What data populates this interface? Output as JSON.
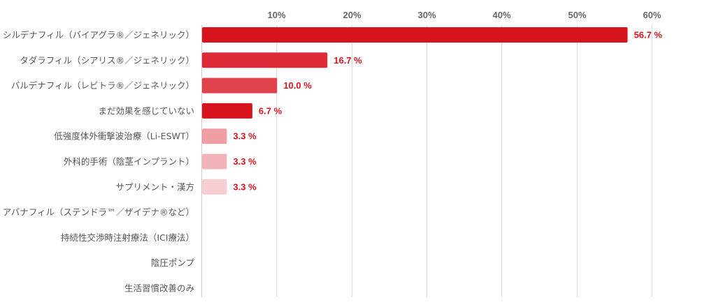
{
  "chart_data": {
    "type": "bar",
    "orientation": "horizontal",
    "title": "",
    "xlabel": "",
    "ylabel": "",
    "xlim": [
      0,
      60
    ],
    "x_ticks": [
      10,
      20,
      30,
      40,
      50,
      60
    ],
    "x_tick_labels": [
      "10%",
      "20%",
      "30%",
      "40%",
      "50%",
      "60%"
    ],
    "grid": true,
    "categories": [
      "シルデナフィル（バイアグラ®／ジェネリック）",
      "タダラフィル（シアリス®／ジェネリック）",
      "バルデナフィル（レビトラ®／ジェネリック）",
      "まだ効果を感じていない",
      "低強度体外衝撃波治療（Li-ESWT）",
      "外科的手術（陰茎インプラント）",
      "サプリメント・漢方",
      "アバナフィル（ステンドラ™／ザイデナ®など）",
      "持続性交渉時注射療法（ICI療法）",
      "陰圧ポンプ",
      "生活習慣改善のみ"
    ],
    "values": [
      56.7,
      16.7,
      10.0,
      6.7,
      3.3,
      3.3,
      3.3,
      0,
      0,
      0,
      0
    ],
    "value_labels": [
      "56.7 %",
      "16.7 %",
      "10.0 %",
      "6.7 %",
      "3.3 %",
      "3.3 %",
      "3.3 %",
      "",
      "",
      "",
      ""
    ],
    "bar_colors": [
      "#d7141e",
      "#dd2a36",
      "#e0424b",
      "#d7141e",
      "#ef9ea4",
      "#f2b3b8",
      "#f6cdd0",
      "#f6cdd0",
      "#f6cdd0",
      "#f6cdd0",
      "#f6cdd0"
    ],
    "label_color": "#d7141e"
  }
}
